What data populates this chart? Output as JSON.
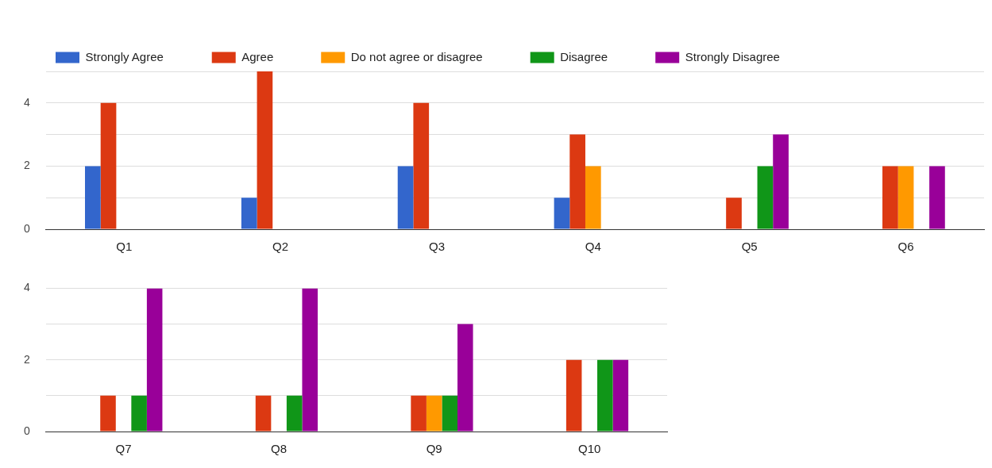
{
  "chart_data": [
    {
      "type": "bar",
      "categories": [
        "Q1",
        "Q2",
        "Q3",
        "Q4",
        "Q5",
        "Q6"
      ],
      "ylim": [
        0,
        5
      ],
      "yticks": [
        0,
        {
          "value": 1,
          "label": null
        },
        2,
        {
          "value": 3,
          "label": null
        },
        4,
        {
          "value": 5,
          "label": null
        }
      ],
      "grid": "y",
      "legend": "top left",
      "series": [
        {
          "name": "Strongly Agree",
          "color": "#3366cc",
          "values": [
            2,
            1,
            2,
            1,
            0,
            0
          ]
        },
        {
          "name": "Agree",
          "color": "#dc3912",
          "values": [
            4,
            5,
            4,
            3,
            1,
            2
          ]
        },
        {
          "name": "Do not agree or disagree",
          "color": "#ff9900",
          "values": [
            0,
            0,
            0,
            2,
            0,
            2
          ]
        },
        {
          "name": "Disagree",
          "color": "#109618",
          "values": [
            0,
            0,
            0,
            0,
            2,
            0
          ]
        },
        {
          "name": "Strongly Disagree",
          "color": "#990099",
          "values": [
            0,
            0,
            0,
            0,
            3,
            2
          ]
        }
      ]
    },
    {
      "type": "bar",
      "categories": [
        "Q7",
        "Q8",
        "Q9",
        "Q10"
      ],
      "ylim": [
        0,
        4
      ],
      "yticks": [
        0,
        {
          "value": 1,
          "label": null
        },
        2,
        {
          "value": 3,
          "label": null
        },
        4
      ],
      "grid": "y",
      "series": [
        {
          "color": "#3366cc",
          "values": [
            0,
            0,
            0,
            0
          ]
        },
        {
          "color": "#dc3912",
          "values": [
            1,
            1,
            1,
            2
          ]
        },
        {
          "color": "#ff9900",
          "values": [
            0,
            0,
            1,
            0
          ]
        },
        {
          "color": "#109618",
          "values": [
            1,
            1,
            1,
            2
          ]
        },
        {
          "color": "#990099",
          "values": [
            4,
            4,
            3,
            2
          ]
        }
      ]
    }
  ]
}
